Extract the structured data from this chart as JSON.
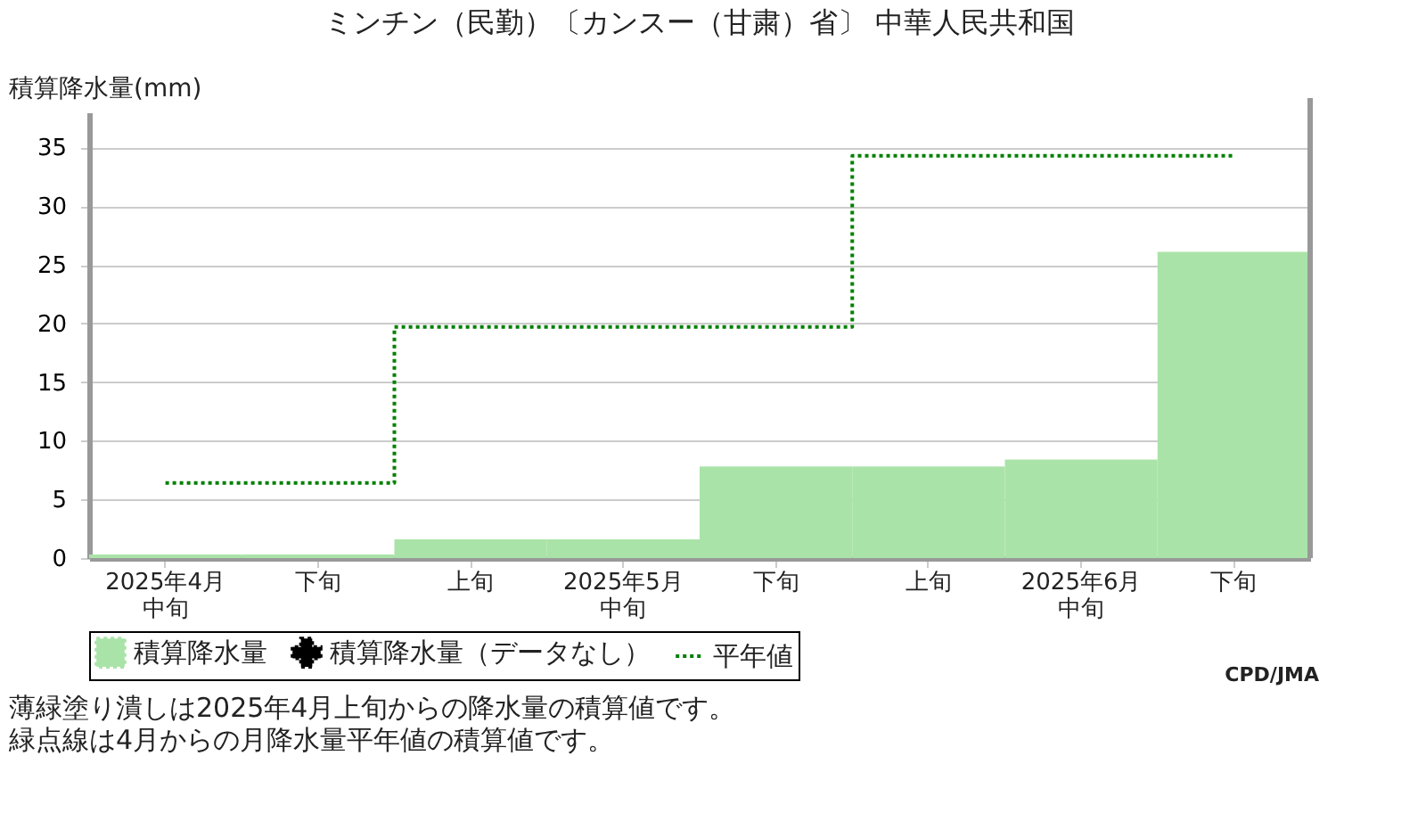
{
  "chart_data": {
    "type": "bar",
    "title": "ミンチン（民勤）〔カンスー（甘粛）省〕 中華人民共和国",
    "ylabel": "積算降水量(mm)",
    "categories": [
      "2025年4月中旬",
      "下旬",
      "上旬",
      "2025年5月中旬",
      "下旬",
      "上旬",
      "2025年6月中旬",
      "下旬"
    ],
    "series": [
      {
        "name": "積算降水量",
        "color": "#aae3a8",
        "values": [
          0.3,
          0.3,
          1.6,
          1.6,
          7.8,
          7.8,
          8.4,
          26.1
        ]
      },
      {
        "name": "積算降水量（データなし）",
        "type": "scatter",
        "color": "#000000",
        "marker": "cross",
        "values": [
          null,
          null,
          null,
          null,
          null,
          null,
          null,
          null
        ]
      },
      {
        "name": "平年値",
        "type": "step",
        "color": "#008000",
        "line_style": "dotted",
        "values": [
          6.4,
          6.4,
          19.7,
          19.7,
          19.7,
          34.3,
          34.3,
          34.3
        ]
      }
    ],
    "ylim": [
      0,
      38
    ],
    "yticks": [
      0,
      5,
      10,
      15,
      20,
      25,
      30,
      35
    ],
    "grid": "y",
    "legend": "bottom",
    "annotations": [
      "CPD/JMA",
      "薄緑塗り潰しは2025年4月上旬からの降水量の積算値です。",
      "緑点線は4月からの月降水量平年値の積算値です。"
    ]
  }
}
